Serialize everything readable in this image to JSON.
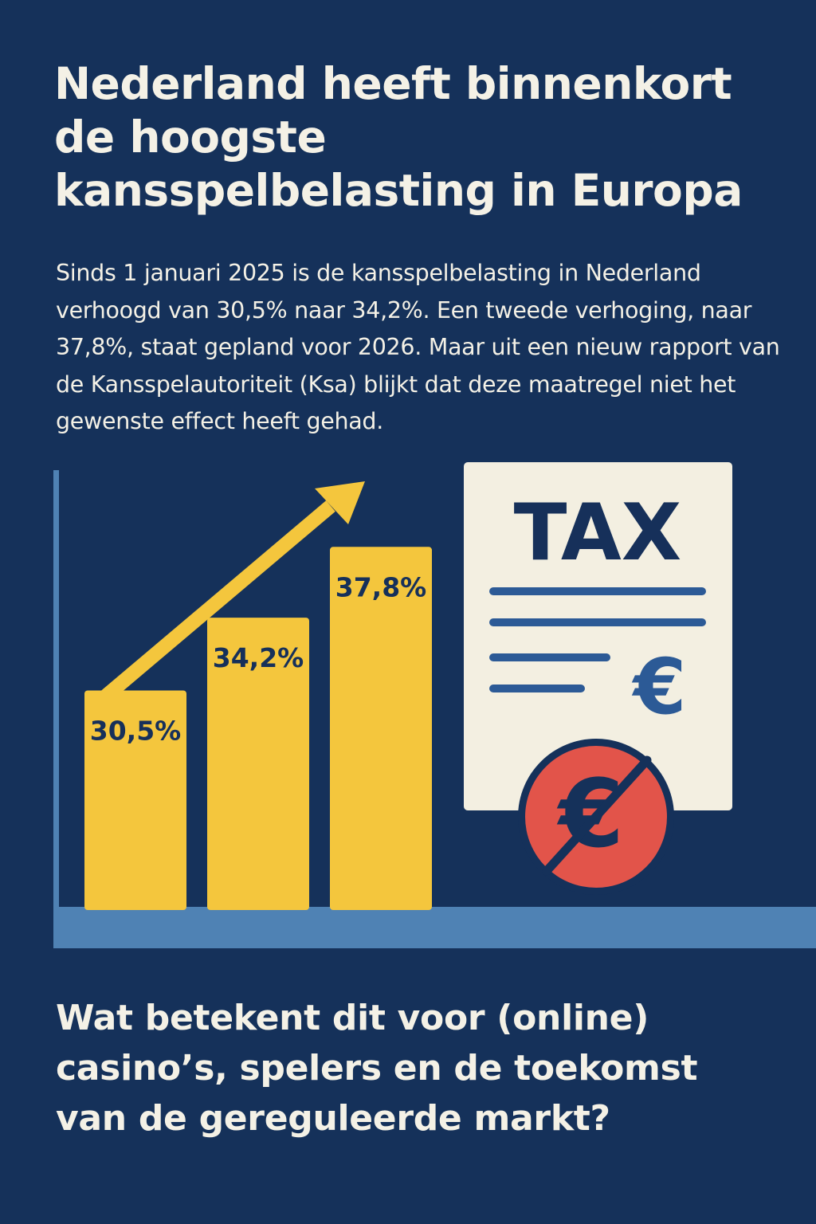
{
  "headline": "Nederland heeft binnenkort de hoogste kansspelbelasting in Europa",
  "intro": "Sinds 1 januari 2025 is de kansspelbelasting in Nederland verhoogd van 30,5% naar 34,2%. Een tweede verhoging, naar 37,8%, staat gepland voor 2026. Maar uit een nieuw rapport van de Kansspelautoriteit (Ksa) blijkt dat deze maatregel niet het gewenste effect heeft gehad.",
  "chart_data": {
    "type": "bar",
    "title": "",
    "xlabel": "",
    "ylabel": "",
    "categories": [
      "",
      "",
      ""
    ],
    "values": [
      30.5,
      34.2,
      37.8
    ],
    "labels": [
      "30,5%",
      "34,2%",
      "37,8%"
    ],
    "ylim": [
      19.5,
      41.7
    ],
    "annotations": [
      "upward-trend-arrow"
    ]
  },
  "tax_document": {
    "title": "TAX",
    "symbol": "€",
    "crossed_symbol": "€"
  },
  "question": "Wat betekent dit voor (online) casino’s, spelers en de toekomst van de gereguleerde markt?",
  "colors": {
    "background": "#15315a",
    "bar": "#f4c63d",
    "bar_label": "#16305a",
    "axis": "#4f82b4",
    "arrow": "#f4c63d",
    "document": "#f3efe1",
    "document_text": "#16305a",
    "document_lines": "#2c5a96",
    "no_money_circle": "#e2544a",
    "text": "#f4f1e6"
  }
}
